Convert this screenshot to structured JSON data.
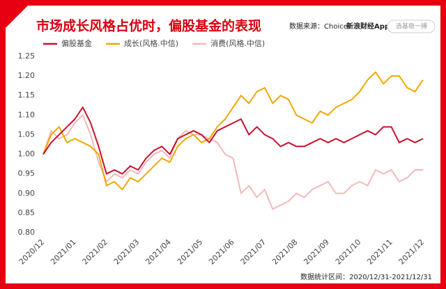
{
  "chart_data": {
    "type": "line",
    "title": "市场成长风格占优时，偏股基金的表现",
    "source": "数据来源：Choice",
    "brand": "新浪财经App",
    "search_box": "选基稳一搏",
    "footnote": "数据统计区间：2020/12/31-2021/12/31",
    "categories": [
      "2020/12",
      null,
      null,
      null,
      "2021/01",
      null,
      null,
      null,
      "2021/02",
      null,
      null,
      null,
      "2021/03",
      null,
      null,
      null,
      "2021/04",
      null,
      null,
      null,
      "2021/05",
      null,
      null,
      null,
      "2021/06",
      null,
      null,
      null,
      "2021/07",
      null,
      null,
      null,
      "2021/08",
      null,
      null,
      null,
      "2021/09",
      null,
      null,
      null,
      "2021/10",
      null,
      null,
      null,
      "2021/11",
      null,
      null,
      null,
      "2021/12"
    ],
    "series": [
      {
        "name": "偏股基金",
        "color": "#c8102e",
        "values": [
          1.0,
          1.03,
          1.05,
          1.07,
          1.09,
          1.12,
          1.08,
          1.02,
          0.95,
          0.96,
          0.95,
          0.97,
          0.96,
          0.99,
          1.01,
          1.02,
          1.0,
          1.04,
          1.05,
          1.06,
          1.05,
          1.03,
          1.06,
          1.07,
          1.08,
          1.09,
          1.05,
          1.07,
          1.05,
          1.04,
          1.02,
          1.03,
          1.02,
          1.02,
          1.03,
          1.04,
          1.03,
          1.04,
          1.03,
          1.04,
          1.05,
          1.06,
          1.05,
          1.07,
          1.07,
          1.03,
          1.04,
          1.03,
          1.04
        ]
      },
      {
        "name": "成长(风格.中信)",
        "color": "#f0a800",
        "values": [
          1.0,
          1.05,
          1.07,
          1.03,
          1.04,
          1.03,
          1.02,
          1.0,
          0.92,
          0.93,
          0.91,
          0.94,
          0.93,
          0.95,
          0.97,
          0.99,
          0.98,
          1.02,
          1.04,
          1.05,
          1.03,
          1.04,
          1.07,
          1.09,
          1.12,
          1.15,
          1.13,
          1.16,
          1.17,
          1.13,
          1.15,
          1.14,
          1.1,
          1.09,
          1.08,
          1.11,
          1.1,
          1.12,
          1.13,
          1.14,
          1.16,
          1.19,
          1.21,
          1.18,
          1.2,
          1.2,
          1.17,
          1.16,
          1.19
        ]
      },
      {
        "name": "消费(风格.中信)",
        "color": "#f4b8b8",
        "values": [
          1.0,
          1.06,
          1.04,
          1.05,
          1.08,
          1.1,
          1.05,
          0.98,
          0.93,
          0.95,
          0.94,
          0.96,
          0.95,
          0.98,
          1.0,
          1.01,
          0.99,
          1.04,
          1.06,
          1.05,
          1.05,
          1.04,
          1.03,
          1.0,
          0.99,
          0.9,
          0.92,
          0.89,
          0.91,
          0.86,
          0.87,
          0.88,
          0.9,
          0.89,
          0.91,
          0.92,
          0.93,
          0.9,
          0.9,
          0.92,
          0.93,
          0.92,
          0.96,
          0.95,
          0.96,
          0.93,
          0.94,
          0.96,
          0.96
        ]
      }
    ],
    "ylim": [
      0.8,
      1.25
    ],
    "yticks": [
      {
        "value": 0.8,
        "label": "0.80"
      },
      {
        "value": 0.85,
        "label": "0.85"
      },
      {
        "value": 0.9,
        "label": "0.90"
      },
      {
        "value": 0.95,
        "label": "0.95"
      },
      {
        "value": 1.0,
        "label": "1.00"
      },
      {
        "value": 1.05,
        "label": "1.05"
      },
      {
        "value": 1.1,
        "label": "1.10"
      },
      {
        "value": 1.15,
        "label": "1.15"
      },
      {
        "value": 1.2,
        "label": "1.20"
      },
      {
        "value": 1.25,
        "label": "1.25"
      }
    ],
    "grid": false
  }
}
